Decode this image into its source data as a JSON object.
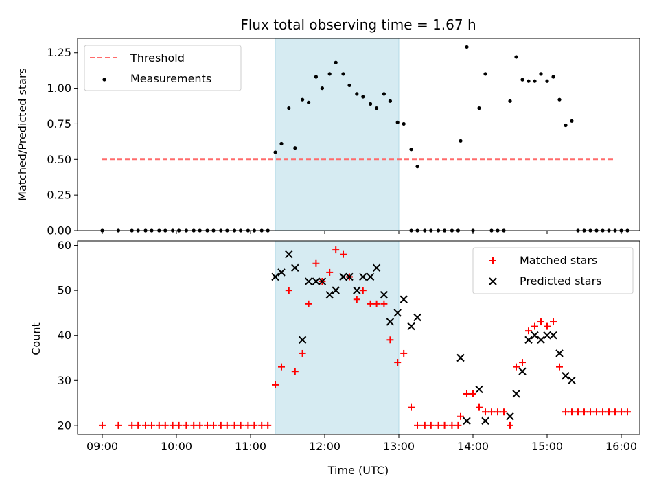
{
  "chart_data": [
    {
      "type": "scatter",
      "title": "Flux total observing time = 1.67 h",
      "ylabel": "Matched/Predicted stars",
      "xlabel": "",
      "xlim": [
        "08:40",
        "16:15"
      ],
      "ylim": [
        0,
        1.35
      ],
      "y_ticks": [
        0.0,
        0.25,
        0.5,
        0.75,
        1.0,
        1.25
      ],
      "y_tick_labels": [
        "0.00",
        "0.25",
        "0.50",
        "0.75",
        "1.00",
        "1.25"
      ],
      "x_tick_labels_visible": false,
      "grid": false,
      "legend_position": "top-left",
      "shaded_interval": {
        "start": "11:20",
        "end": "13:00",
        "color": "#add8e6"
      },
      "threshold": {
        "name": "Threshold",
        "y": 0.5,
        "x_start": "09:00",
        "x_end": "15:55",
        "color": "#ff6b6b",
        "style": "dashed"
      },
      "series": [
        {
          "name": "Measurements",
          "marker": "dot",
          "color": "#000000",
          "points": [
            [
              "09:00",
              0
            ],
            [
              "09:13",
              0
            ],
            [
              "09:24",
              0
            ],
            [
              "09:29",
              0
            ],
            [
              "09:35",
              0
            ],
            [
              "09:40",
              0
            ],
            [
              "09:46",
              0
            ],
            [
              "09:51",
              0
            ],
            [
              "09:57",
              0
            ],
            [
              "10:02",
              0
            ],
            [
              "10:08",
              0
            ],
            [
              "10:14",
              0
            ],
            [
              "10:19",
              0
            ],
            [
              "10:25",
              0
            ],
            [
              "10:30",
              0
            ],
            [
              "10:36",
              0
            ],
            [
              "10:41",
              0
            ],
            [
              "10:47",
              0
            ],
            [
              "10:52",
              0
            ],
            [
              "10:58",
              0
            ],
            [
              "11:03",
              0
            ],
            [
              "11:09",
              0
            ],
            [
              "11:14",
              0
            ],
            [
              "11:20",
              0.55
            ],
            [
              "11:25",
              0.61
            ],
            [
              "11:31",
              0.86
            ],
            [
              "11:36",
              0.58
            ],
            [
              "11:42",
              0.92
            ],
            [
              "11:47",
              0.9
            ],
            [
              "11:53",
              1.08
            ],
            [
              "11:58",
              1.0
            ],
            [
              "12:04",
              1.1
            ],
            [
              "12:09",
              1.18
            ],
            [
              "12:15",
              1.1
            ],
            [
              "12:20",
              1.02
            ],
            [
              "12:26",
              0.96
            ],
            [
              "12:31",
              0.94
            ],
            [
              "12:37",
              0.89
            ],
            [
              "12:42",
              0.86
            ],
            [
              "12:48",
              0.96
            ],
            [
              "12:53",
              0.91
            ],
            [
              "12:59",
              0.76
            ],
            [
              "13:04",
              0.75
            ],
            [
              "13:10",
              0.57
            ],
            [
              "13:15",
              0.45
            ],
            [
              "13:10",
              0
            ],
            [
              "13:15",
              0
            ],
            [
              "13:21",
              0
            ],
            [
              "13:26",
              0
            ],
            [
              "13:32",
              0
            ],
            [
              "13:37",
              0
            ],
            [
              "13:43",
              0
            ],
            [
              "13:48",
              0
            ],
            [
              "13:50",
              0.63
            ],
            [
              "13:55",
              1.29
            ],
            [
              "14:00",
              0
            ],
            [
              "14:05",
              0.86
            ],
            [
              "14:10",
              1.1
            ],
            [
              "14:15",
              0
            ],
            [
              "14:20",
              0
            ],
            [
              "14:25",
              0
            ],
            [
              "14:30",
              0.91
            ],
            [
              "14:35",
              1.22
            ],
            [
              "14:40",
              1.06
            ],
            [
              "14:45",
              1.05
            ],
            [
              "14:50",
              1.05
            ],
            [
              "14:55",
              1.1
            ],
            [
              "15:00",
              1.05
            ],
            [
              "15:05",
              1.08
            ],
            [
              "15:10",
              0.92
            ],
            [
              "15:15",
              0.74
            ],
            [
              "15:20",
              0.77
            ],
            [
              "15:25",
              0
            ],
            [
              "15:30",
              0
            ],
            [
              "15:35",
              0
            ],
            [
              "15:40",
              0
            ],
            [
              "15:45",
              0
            ],
            [
              "15:50",
              0
            ],
            [
              "15:55",
              0
            ],
            [
              "16:00",
              0
            ],
            [
              "16:05",
              0
            ]
          ]
        }
      ]
    },
    {
      "type": "scatter",
      "title": "",
      "ylabel": "Count",
      "xlabel": "Time (UTC)",
      "xlim": [
        "08:40",
        "16:15"
      ],
      "ylim": [
        18,
        61
      ],
      "y_ticks": [
        20,
        30,
        40,
        50,
        60
      ],
      "y_tick_labels": [
        "20",
        "30",
        "40",
        "50",
        "60"
      ],
      "x_ticks": [
        "09:00",
        "10:00",
        "11:00",
        "12:00",
        "13:00",
        "14:00",
        "15:00",
        "16:00"
      ],
      "x_tick_labels": [
        "09:00",
        "10:00",
        "11:00",
        "12:00",
        "13:00",
        "14:00",
        "15:00",
        "16:00"
      ],
      "grid": false,
      "legend_position": "top-right",
      "shaded_interval": {
        "start": "11:20",
        "end": "13:00",
        "color": "#add8e6"
      },
      "series": [
        {
          "name": "Matched stars",
          "marker": "plus",
          "color": "#ff0000",
          "points": [
            [
              "09:00",
              20
            ],
            [
              "09:13",
              20
            ],
            [
              "09:24",
              20
            ],
            [
              "09:29",
              20
            ],
            [
              "09:35",
              20
            ],
            [
              "09:40",
              20
            ],
            [
              "09:46",
              20
            ],
            [
              "09:51",
              20
            ],
            [
              "09:57",
              20
            ],
            [
              "10:02",
              20
            ],
            [
              "10:08",
              20
            ],
            [
              "10:14",
              20
            ],
            [
              "10:19",
              20
            ],
            [
              "10:25",
              20
            ],
            [
              "10:30",
              20
            ],
            [
              "10:36",
              20
            ],
            [
              "10:41",
              20
            ],
            [
              "10:47",
              20
            ],
            [
              "10:52",
              20
            ],
            [
              "10:58",
              20
            ],
            [
              "11:03",
              20
            ],
            [
              "11:09",
              20
            ],
            [
              "11:14",
              20
            ],
            [
              "11:20",
              29
            ],
            [
              "11:25",
              33
            ],
            [
              "11:31",
              50
            ],
            [
              "11:36",
              32
            ],
            [
              "11:42",
              36
            ],
            [
              "11:47",
              47
            ],
            [
              "11:53",
              56
            ],
            [
              "11:58",
              52
            ],
            [
              "12:04",
              54
            ],
            [
              "12:09",
              59
            ],
            [
              "12:15",
              58
            ],
            [
              "12:20",
              53
            ],
            [
              "12:26",
              48
            ],
            [
              "12:31",
              50
            ],
            [
              "12:37",
              47
            ],
            [
              "12:42",
              47
            ],
            [
              "12:48",
              47
            ],
            [
              "12:53",
              39
            ],
            [
              "12:59",
              34
            ],
            [
              "13:04",
              36
            ],
            [
              "13:10",
              24
            ],
            [
              "13:15",
              20
            ],
            [
              "13:21",
              20
            ],
            [
              "13:26",
              20
            ],
            [
              "13:32",
              20
            ],
            [
              "13:37",
              20
            ],
            [
              "13:43",
              20
            ],
            [
              "13:48",
              20
            ],
            [
              "13:50",
              22
            ],
            [
              "13:55",
              27
            ],
            [
              "14:00",
              27
            ],
            [
              "14:05",
              24
            ],
            [
              "14:10",
              23
            ],
            [
              "14:15",
              23
            ],
            [
              "14:20",
              23
            ],
            [
              "14:25",
              23
            ],
            [
              "14:30",
              20
            ],
            [
              "14:35",
              33
            ],
            [
              "14:40",
              34
            ],
            [
              "14:45",
              41
            ],
            [
              "14:50",
              42
            ],
            [
              "14:55",
              43
            ],
            [
              "15:00",
              42
            ],
            [
              "15:05",
              43
            ],
            [
              "15:10",
              33
            ],
            [
              "15:15",
              23
            ],
            [
              "15:20",
              23
            ],
            [
              "15:25",
              23
            ],
            [
              "15:30",
              23
            ],
            [
              "15:35",
              23
            ],
            [
              "15:40",
              23
            ],
            [
              "15:45",
              23
            ],
            [
              "15:50",
              23
            ],
            [
              "15:55",
              23
            ],
            [
              "16:00",
              23
            ],
            [
              "16:05",
              23
            ]
          ]
        },
        {
          "name": "Predicted stars",
          "marker": "x",
          "color": "#000000",
          "points": [
            [
              "11:20",
              53
            ],
            [
              "11:25",
              54
            ],
            [
              "11:31",
              58
            ],
            [
              "11:36",
              55
            ],
            [
              "11:42",
              39
            ],
            [
              "11:47",
              52
            ],
            [
              "11:53",
              52
            ],
            [
              "11:58",
              52
            ],
            [
              "12:04",
              49
            ],
            [
              "12:09",
              50
            ],
            [
              "12:15",
              53
            ],
            [
              "12:20",
              53
            ],
            [
              "12:26",
              50
            ],
            [
              "12:31",
              53
            ],
            [
              "12:37",
              53
            ],
            [
              "12:42",
              55
            ],
            [
              "12:48",
              49
            ],
            [
              "12:53",
              43
            ],
            [
              "12:59",
              45
            ],
            [
              "13:04",
              48
            ],
            [
              "13:10",
              42
            ],
            [
              "13:15",
              44
            ],
            [
              "13:50",
              35
            ],
            [
              "13:55",
              21
            ],
            [
              "14:05",
              28
            ],
            [
              "14:10",
              21
            ],
            [
              "14:30",
              22
            ],
            [
              "14:35",
              27
            ],
            [
              "14:40",
              32
            ],
            [
              "14:45",
              39
            ],
            [
              "14:50",
              40
            ],
            [
              "14:55",
              39
            ],
            [
              "15:00",
              40
            ],
            [
              "15:05",
              40
            ],
            [
              "15:10",
              36
            ],
            [
              "15:15",
              31
            ],
            [
              "15:20",
              30
            ]
          ]
        }
      ]
    }
  ]
}
